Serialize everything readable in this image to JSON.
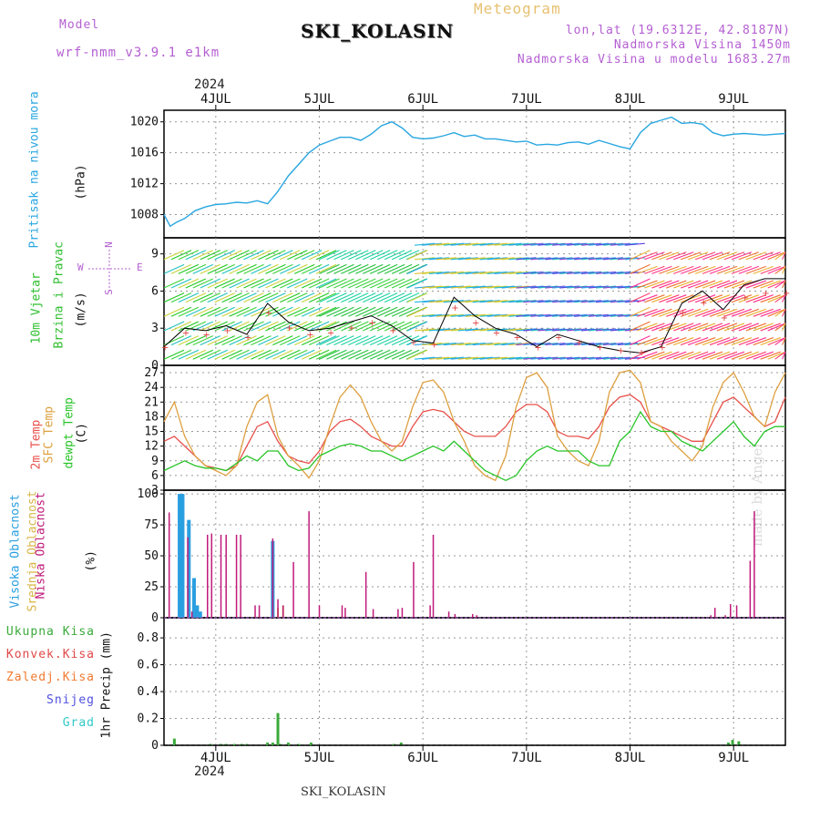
{
  "header": {
    "model_label": "Model",
    "model_name": "wrf-nmm_v3.9.1 e1km",
    "station": "SKI_KOLASIN",
    "product": "Meteogram",
    "coords": "lon,lat (19.6312E, 42.8187N)",
    "elevation": "Nadmorska Visina 1450m",
    "model_elevation": "Nadmorska Visina u modelu 1683.27m",
    "year_top": "2024",
    "year_bottom": "2024",
    "footer_station": "SKI_KOLASIN",
    "watermark": "made by Angel"
  },
  "colors": {
    "model": "#b45fd2",
    "product": "#e8c070",
    "coords": "#b45fd2",
    "pressure": "#29a6e0",
    "wind_speed": "#2fbf2f",
    "temp2m": "#e8504a",
    "sfc_temp": "#dda040",
    "dewpt": "#27c427",
    "high_cloud": "#2a9fe0",
    "mid_cloud": "#d9b64a",
    "low_cloud": "#c01a7a",
    "total_precip": "#3aaa3a",
    "conv_precip": "#e04848",
    "frozen_precip": "#f07a30",
    "snow": "#5050e0",
    "graupel": "#30c8c8"
  },
  "x_days": [
    "4JUL",
    "5JUL",
    "6JUL",
    "7JUL",
    "8JUL",
    "9JUL"
  ],
  "panels": {
    "pressure": {
      "label1": "Pritisak na nivou mora",
      "unit": "(hPa)",
      "ticks": [
        "1008",
        "1012",
        "1016",
        "1020"
      ]
    },
    "wind": {
      "label1": "10m Vjetar",
      "label2": "Brzina i Pravac",
      "unit": "(m/s)",
      "ticks": [
        "0",
        "3",
        "6",
        "9"
      ],
      "compass_n": "N",
      "compass_s": "S",
      "compass_w": "W",
      "compass_e": "E"
    },
    "temp": {
      "label1": "2m Temp",
      "label2": "SFC Temp",
      "label3": "dewpt Temp",
      "unit": "(C)",
      "ticks": [
        "3",
        "6",
        "9",
        "12",
        "15",
        "18",
        "21",
        "24",
        "27"
      ]
    },
    "cloud": {
      "label1": "Visoka Oblacnost",
      "label2": "Srednja Oblacnost",
      "label3": "Niska Oblacnost",
      "unit": "(%)",
      "ticks": [
        "0",
        "25",
        "50",
        "75",
        "100"
      ]
    },
    "precip": {
      "unit": "1hr Precip (mm)",
      "ticks": [
        "0",
        "0.2",
        "0.4",
        "0.6",
        "0.8"
      ],
      "legend": [
        "Ukupna Kisa",
        "Konvek.Kisa",
        "Zaledj.Kisa",
        "Snijeg",
        "Grad"
      ]
    }
  },
  "chart_data": [
    {
      "type": "line",
      "title": "Pritisak na nivou mora",
      "ylabel": "(hPa)",
      "ylim": [
        1005,
        1021.5
      ],
      "xlim": [
        0,
        6
      ],
      "grid": true,
      "series": [
        {
          "name": "Pritisak na nivou mora",
          "x": [
            0,
            0.06,
            0.12,
            0.2,
            0.3,
            0.4,
            0.5,
            0.6,
            0.7,
            0.8,
            0.9,
            1.0,
            1.1,
            1.2,
            1.3,
            1.4,
            1.5,
            1.6,
            1.7,
            1.8,
            1.9,
            2.0,
            2.1,
            2.2,
            2.3,
            2.4,
            2.5,
            2.6,
            2.7,
            2.8,
            2.9,
            3.0,
            3.1,
            3.2,
            3.3,
            3.4,
            3.5,
            3.6,
            3.7,
            3.8,
            3.9,
            4.0,
            4.1,
            4.2,
            4.3,
            4.4,
            4.5,
            4.6,
            4.7,
            4.8,
            4.9,
            5.0,
            5.1,
            5.2,
            5.3,
            5.4,
            5.5,
            5.6,
            5.7,
            5.8,
            5.9,
            6.0
          ],
          "values": [
            1008,
            1006.5,
            1007,
            1007.5,
            1008.5,
            1009,
            1009.3,
            1009.4,
            1009.6,
            1009.5,
            1009.8,
            1009.4,
            1011,
            1013,
            1014.5,
            1016,
            1017,
            1017.5,
            1018,
            1018,
            1017.6,
            1018.4,
            1019.5,
            1020,
            1019.2,
            1018,
            1017.8,
            1017.9,
            1018.2,
            1018.6,
            1018.1,
            1018.3,
            1017.8,
            1017.8,
            1017.6,
            1017.4,
            1017.5,
            1017,
            1017.1,
            1017,
            1017.3,
            1017.4,
            1017.1,
            1017.6,
            1017.2,
            1016.8,
            1016.5,
            1018.6,
            1019.8,
            1020.2,
            1020.6,
            1019.8,
            1019.9,
            1019.7,
            1018.6,
            1018.2,
            1018.4,
            1018.5,
            1018.4,
            1018.3,
            1018.4,
            1018.5
          ]
        }
      ]
    },
    {
      "type": "line",
      "title": "10m Vjetar Brzina i Pravac",
      "ylabel": "(m/s)",
      "ylim": [
        0,
        10.3
      ],
      "xlim": [
        0,
        6
      ],
      "grid": true,
      "series": [
        {
          "name": "10m Vjetar",
          "x": [
            0,
            0.2,
            0.4,
            0.6,
            0.8,
            1.0,
            1.2,
            1.4,
            1.6,
            1.8,
            2.0,
            2.2,
            2.4,
            2.6,
            2.8,
            3.0,
            3.2,
            3.4,
            3.6,
            3.8,
            4.0,
            4.2,
            4.4,
            4.6,
            4.8,
            5.0,
            5.2,
            5.4,
            5.6,
            5.8,
            6.0
          ],
          "values": [
            1.5,
            3,
            2.8,
            3.2,
            2.5,
            5,
            3.5,
            2.8,
            3,
            3.5,
            4,
            3.2,
            2,
            1.8,
            5.5,
            4,
            3,
            2.5,
            1.5,
            2.5,
            2,
            1.5,
            1.2,
            1,
            1.5,
            5,
            6,
            4.5,
            6.5,
            7,
            7
          ]
        }
      ]
    },
    {
      "type": "line",
      "title": "2m Temp / SFC Temp / dewpt Temp",
      "ylabel": "(C)",
      "ylim": [
        3,
        28.5
      ],
      "xlim": [
        0,
        6
      ],
      "grid": true,
      "x": [
        0,
        0.1,
        0.2,
        0.3,
        0.4,
        0.5,
        0.6,
        0.7,
        0.8,
        0.9,
        1.0,
        1.1,
        1.2,
        1.3,
        1.4,
        1.5,
        1.6,
        1.7,
        1.8,
        1.9,
        2.0,
        2.1,
        2.2,
        2.3,
        2.4,
        2.5,
        2.6,
        2.7,
        2.8,
        2.9,
        3.0,
        3.1,
        3.2,
        3.3,
        3.4,
        3.5,
        3.6,
        3.7,
        3.8,
        3.9,
        4.0,
        4.1,
        4.2,
        4.3,
        4.4,
        4.5,
        4.6,
        4.7,
        4.8,
        4.9,
        5.0,
        5.1,
        5.2,
        5.3,
        5.4,
        5.5,
        5.6,
        5.7,
        5.8,
        5.9,
        6.0
      ],
      "series": [
        {
          "name": "2m Temp",
          "values": [
            13,
            14,
            12,
            10,
            8,
            7.5,
            7,
            8,
            12,
            16,
            17,
            13,
            10,
            9,
            8.5,
            11,
            15,
            17,
            17.5,
            16,
            14,
            13,
            12,
            12,
            16,
            19,
            19.5,
            19,
            17,
            15,
            14,
            14,
            14,
            16,
            19,
            20.5,
            20.5,
            19,
            15,
            14,
            14,
            13.5,
            16,
            20,
            22,
            22.5,
            21,
            17,
            16,
            15,
            14,
            13,
            13,
            17,
            21,
            22,
            20,
            18,
            16,
            17,
            22
          ]
        },
        {
          "name": "SFC Temp",
          "values": [
            17,
            21,
            14,
            10,
            8,
            7,
            6,
            8,
            16,
            21,
            22.5,
            14,
            10,
            8,
            5.5,
            9,
            16,
            22,
            24.5,
            22,
            17,
            13,
            11,
            13,
            20,
            25,
            25.5,
            23,
            17,
            13,
            8,
            6,
            5,
            10,
            20,
            26,
            27,
            24,
            14,
            11,
            9,
            8,
            13,
            23,
            27,
            27.5,
            25,
            17,
            16,
            13,
            11,
            9,
            12,
            20,
            25,
            27,
            23,
            18,
            16,
            23,
            27
          ]
        },
        {
          "name": "dewpt Temp",
          "values": [
            7,
            8,
            9,
            8,
            7.5,
            7.5,
            7,
            8.5,
            10,
            9,
            11,
            11,
            8,
            7,
            7.5,
            10,
            11,
            12,
            12.5,
            12,
            11,
            11,
            10,
            9,
            10,
            11,
            12,
            11,
            13,
            11,
            9,
            7,
            6,
            5,
            6,
            9,
            11,
            12,
            11,
            11,
            11,
            9,
            8,
            8,
            13,
            15,
            19,
            16,
            15,
            15,
            13,
            12,
            11,
            13,
            15,
            17,
            14,
            12,
            15,
            16,
            16
          ]
        }
      ]
    },
    {
      "type": "bar",
      "title": "Oblacnost",
      "ylabel": "(%)",
      "ylim": [
        0,
        103
      ],
      "xlim": [
        0,
        6
      ],
      "grid": true,
      "series": [
        {
          "name": "Visoka Oblacnost",
          "x": [
            0.15,
            0.17,
            0.18,
            0.24,
            0.29,
            0.32,
            0.35,
            1.05
          ],
          "values": [
            100,
            100,
            100,
            79,
            32,
            10,
            5,
            62
          ]
        },
        {
          "name": "Srednja Oblacnost",
          "x": [
            1.1,
            1.15
          ],
          "values": [
            8,
            10
          ]
        },
        {
          "name": "Niska Oblacnost",
          "x": [
            0.05,
            0.23,
            0.27,
            0.42,
            0.46,
            0.55,
            0.6,
            0.7,
            0.74,
            0.88,
            0.92,
            1.05,
            1.1,
            1.15,
            1.25,
            1.4,
            1.5,
            1.72,
            1.75,
            1.95,
            2.02,
            2.26,
            2.3,
            2.41,
            2.57,
            2.6,
            2.75,
            2.81,
            2.98,
            3.02,
            5.28,
            5.32,
            5.42,
            5.47,
            5.53,
            5.66,
            5.7
          ],
          "values": [
            85,
            65,
            5,
            67,
            68,
            67,
            67,
            67,
            67,
            10,
            10,
            64,
            15,
            10,
            45,
            86,
            10,
            10,
            8,
            37,
            7,
            7,
            8,
            45,
            10,
            67,
            5,
            3,
            3,
            2,
            2,
            8,
            2,
            11,
            10,
            46,
            86
          ]
        }
      ]
    },
    {
      "type": "bar",
      "title": "1hr Precip",
      "ylabel": "1hr Precip (mm)",
      "ylim": [
        0,
        0.95
      ],
      "xlim": [
        0,
        6
      ],
      "grid": true,
      "series": [
        {
          "name": "Ukupna Kisa",
          "x": [
            0.1,
            0.45,
            0.55,
            0.6,
            0.68,
            0.75,
            0.8,
            1.0,
            1.05,
            1.1,
            1.12,
            1.2,
            1.3,
            1.42,
            2.22,
            2.29,
            5.45,
            5.49,
            5.55
          ],
          "values": [
            0.05,
            0.01,
            0.01,
            0.01,
            0.01,
            0.01,
            0.01,
            0.02,
            0.02,
            0.24,
            0.01,
            0.02,
            0.01,
            0.02,
            0.01,
            0.02,
            0.02,
            0.04,
            0.03
          ]
        }
      ]
    }
  ]
}
